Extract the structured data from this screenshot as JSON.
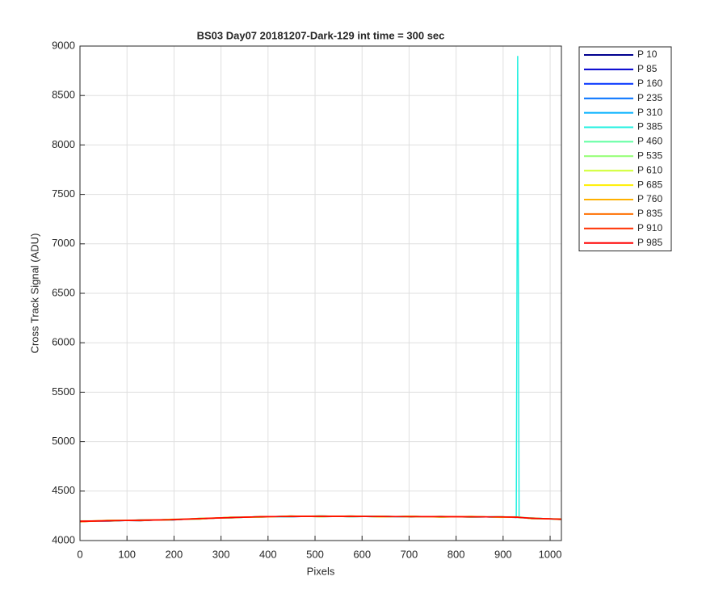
{
  "chart_data": {
    "type": "line",
    "title": "BS03 Day07 20181207-Dark-129 int time = 300 sec",
    "x_label": "Pixels",
    "y_label": "Cross Track Signal (ADU)",
    "x": [
      0,
      64,
      128,
      192,
      256,
      320,
      384,
      448,
      512,
      576,
      640,
      704,
      768,
      832,
      896,
      928,
      931,
      934,
      960,
      1024
    ],
    "xlim": [
      0,
      1024
    ],
    "xticks": [
      0,
      100,
      200,
      300,
      400,
      500,
      600,
      700,
      800,
      900,
      1000
    ],
    "ylim": [
      4000,
      9000
    ],
    "yticks": [
      4000,
      4500,
      5000,
      5500,
      6000,
      6500,
      7000,
      7500,
      8000,
      8500,
      9000
    ],
    "grid": true,
    "legend": "outside-right",
    "series": [
      {
        "name": "P 10",
        "color": "#00008f",
        "values": [
          4190,
          4205,
          4200,
          4214,
          4218,
          4236,
          4238,
          4248,
          4241,
          4246,
          4240,
          4245,
          4238,
          4243,
          4235,
          4239,
          4233,
          4236,
          4222,
          4218
        ]
      },
      {
        "name": "P 85",
        "color": "#0000cf",
        "values": [
          4198,
          4196,
          4208,
          4206,
          4225,
          4229,
          4243,
          4240,
          4249,
          4241,
          4246,
          4238,
          4244,
          4237,
          4241,
          4233,
          4238,
          4231,
          4229,
          4212
        ]
      },
      {
        "name": "P 160",
        "color": "#0030ff",
        "values": [
          4192,
          4203,
          4202,
          4212,
          4220,
          4234,
          4237,
          4246,
          4243,
          4248,
          4241,
          4244,
          4239,
          4242,
          4236,
          4238,
          4235,
          4236,
          4224,
          4217
        ]
      },
      {
        "name": "P 235",
        "color": "#0070ff",
        "values": [
          4197,
          4199,
          4207,
          4208,
          4224,
          4230,
          4242,
          4243,
          4246,
          4242,
          4245,
          4240,
          4243,
          4238,
          4240,
          4235,
          4237,
          4232,
          4228,
          4214
        ]
      },
      {
        "name": "P 310",
        "color": "#00b0ff",
        "values": [
          4194,
          4202,
          4204,
          4211,
          4221,
          4233,
          4239,
          4245,
          4244,
          4245,
          4242,
          4243,
          4240,
          4241,
          4237,
          4237,
          4236,
          4235,
          4225,
          4216
        ]
      },
      {
        "name": "P 385",
        "color": "#20f0e0",
        "values": [
          4196,
          4201,
          4206,
          4209,
          4223,
          4231,
          4241,
          4242,
          4247,
          4243,
          4244,
          4241,
          4242,
          4239,
          4239,
          4240,
          8900,
          4238,
          4227,
          4213
        ]
      },
      {
        "name": "P 460",
        "color": "#60ffa0",
        "values": [
          4191,
          4204,
          4203,
          4213,
          4219,
          4235,
          4238,
          4247,
          4242,
          4247,
          4240,
          4246,
          4237,
          4244,
          4235,
          4238,
          4234,
          4237,
          4223,
          4219
        ]
      },
      {
        "name": "P 535",
        "color": "#90ff70",
        "values": [
          4199,
          4198,
          4209,
          4207,
          4226,
          4228,
          4244,
          4241,
          4250,
          4240,
          4247,
          4239,
          4245,
          4236,
          4242,
          4234,
          4239,
          4230,
          4230,
          4211
        ]
      },
      {
        "name": "P 610",
        "color": "#d0ff30",
        "values": [
          4193,
          4206,
          4201,
          4215,
          4217,
          4237,
          4236,
          4249,
          4240,
          4249,
          4239,
          4247,
          4236,
          4245,
          4234,
          4240,
          4232,
          4238,
          4221,
          4220
        ]
      },
      {
        "name": "P 685",
        "color": "#ffef00",
        "values": [
          4195,
          4200,
          4205,
          4210,
          4222,
          4232,
          4240,
          4244,
          4245,
          4244,
          4243,
          4242,
          4241,
          4240,
          4238,
          4236,
          4236,
          4234,
          4226,
          4215
        ]
      },
      {
        "name": "P 760",
        "color": "#ffb000",
        "values": [
          4189,
          4203,
          4206,
          4212,
          4224,
          4234,
          4239,
          4246,
          4244,
          4245,
          4241,
          4244,
          4240,
          4242,
          4237,
          4238,
          4235,
          4236,
          4224,
          4217
        ]
      },
      {
        "name": "P 835",
        "color": "#ff7000",
        "values": [
          4197,
          4201,
          4203,
          4209,
          4221,
          4231,
          4242,
          4243,
          4246,
          4243,
          4245,
          4241,
          4242,
          4239,
          4240,
          4236,
          4237,
          4233,
          4227,
          4214
        ]
      },
      {
        "name": "P 910",
        "color": "#ff3000",
        "values": [
          4192,
          4199,
          4207,
          4211,
          4223,
          4233,
          4240,
          4245,
          4243,
          4246,
          4242,
          4243,
          4241,
          4241,
          4238,
          4237,
          4236,
          4235,
          4225,
          4216
        ]
      },
      {
        "name": "P 985",
        "color": "#ff0000",
        "values": [
          4196,
          4202,
          4204,
          4210,
          4222,
          4232,
          4241,
          4244,
          4245,
          4244,
          4243,
          4242,
          4242,
          4240,
          4239,
          4236,
          4237,
          4234,
          4226,
          4215
        ]
      }
    ]
  }
}
